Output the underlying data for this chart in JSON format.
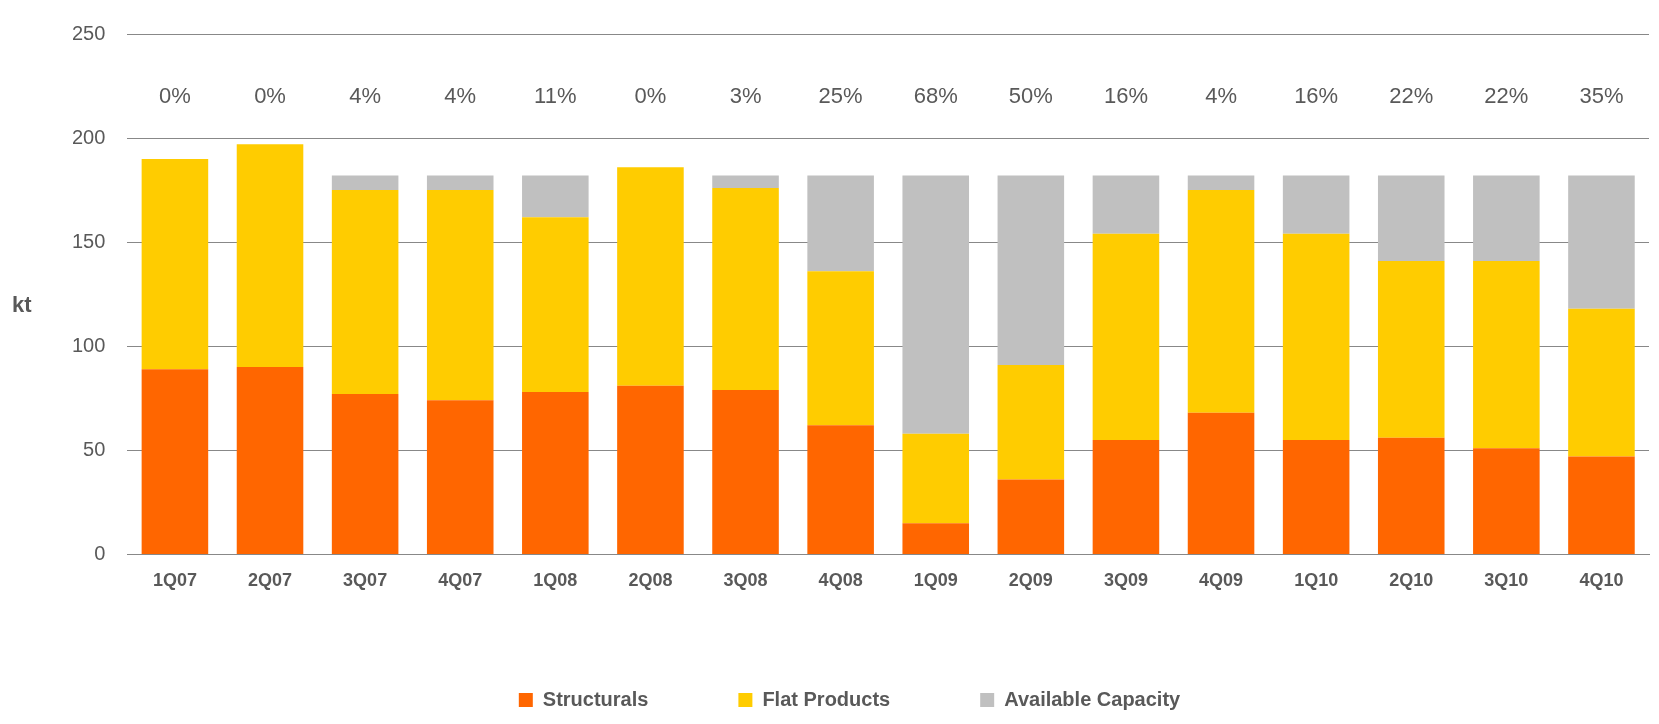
{
  "chart_data": {
    "type": "bar",
    "stacked": true,
    "ylabel": "kt",
    "categories": [
      "1Q07",
      "2Q07",
      "3Q07",
      "4Q07",
      "1Q08",
      "2Q08",
      "3Q08",
      "4Q08",
      "1Q09",
      "2Q09",
      "3Q09",
      "4Q09",
      "1Q10",
      "2Q10",
      "3Q10",
      "4Q10"
    ],
    "series": [
      {
        "name": "Structurals",
        "color": "#ff6600",
        "values": [
          89,
          90,
          77,
          74,
          78,
          81,
          79,
          62,
          15,
          36,
          55,
          68,
          55,
          56,
          51,
          47
        ]
      },
      {
        "name": "Flat Products",
        "color": "#ffcc00",
        "values": [
          101,
          107,
          98,
          101,
          84,
          105,
          97,
          74,
          43,
          55,
          99,
          107,
          99,
          85,
          90,
          71
        ]
      },
      {
        "name": "Available Capacity",
        "color": "#c0c0c0",
        "values": [
          null,
          null,
          7,
          7,
          20,
          null,
          6,
          46,
          124,
          91,
          28,
          7,
          28,
          41,
          41,
          64
        ]
      }
    ],
    "ylim": [
      0,
      250
    ],
    "yticks": [
      0,
      50,
      100,
      150,
      200,
      250
    ],
    "grid": "y",
    "legend": "bottom",
    "annotations": [
      "0%",
      "0%",
      "4%",
      "4%",
      "11%",
      "0%",
      "3%",
      "25%",
      "68%",
      "50%",
      "16%",
      "4%",
      "16%",
      "22%",
      "22%",
      "35%"
    ]
  }
}
